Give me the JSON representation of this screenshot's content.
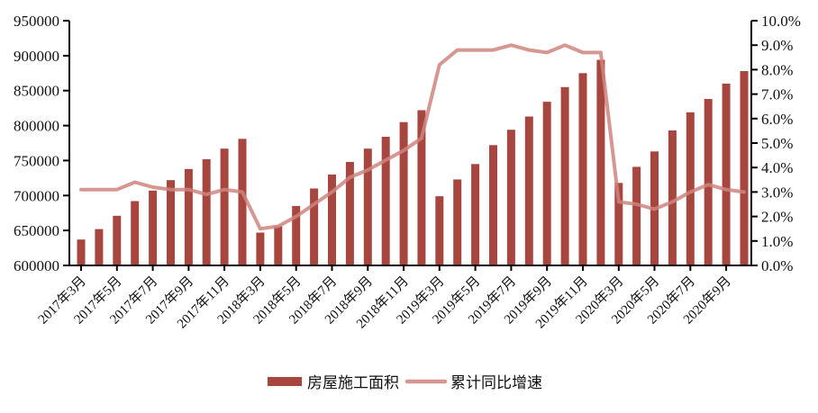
{
  "legend": {
    "bar_label": "房屋施工面积",
    "line_label": "累计同比增速"
  },
  "colors": {
    "bar": "#A7463F",
    "line": "#CF847E",
    "line_opacity": 0.85,
    "axis": "#000000",
    "text": "#111111",
    "background": "#FFFFFF"
  },
  "chart_data": {
    "type": "bar",
    "subtype": "dual-axis bar + line combo",
    "title": "",
    "grid": false,
    "legend_position": "bottom",
    "categories": [
      "2017年3月",
      "2017年4月",
      "2017年5月",
      "2017年6月",
      "2017年7月",
      "2017年8月",
      "2017年9月",
      "2017年10月",
      "2017年11月",
      "2017年12月",
      "2018年3月",
      "2018年4月",
      "2018年5月",
      "2018年6月",
      "2018年7月",
      "2018年8月",
      "2018年9月",
      "2018年10月",
      "2018年11月",
      "2018年12月",
      "2019年3月",
      "2019年4月",
      "2019年5月",
      "2019年6月",
      "2019年7月",
      "2019年8月",
      "2019年9月",
      "2019年10月",
      "2019年11月",
      "2019年12月",
      "2020年3月",
      "2020年4月",
      "2020年5月",
      "2020年6月",
      "2020年7月",
      "2020年8月",
      "2020年9月",
      "2020年10月"
    ],
    "x_tick_labels": [
      "2017年3月",
      "2017年5月",
      "2017年7月",
      "2017年9月",
      "2017年11月",
      "2018年3月",
      "2018年5月",
      "2018年7月",
      "2018年9月",
      "2018年11月",
      "2019年3月",
      "2019年5月",
      "2019年7月",
      "2019年9月",
      "2019年11月",
      "2020年3月",
      "2020年5月",
      "2020年7月",
      "2020年9月"
    ],
    "series": [
      {
        "name": "房屋施工面积",
        "type": "bar",
        "y_axis": "left",
        "values": [
          637000,
          652000,
          671000,
          692000,
          707000,
          722000,
          738000,
          752000,
          767000,
          781000,
          647000,
          656000,
          685000,
          710000,
          730000,
          748000,
          767000,
          784000,
          805000,
          822000,
          699000,
          723000,
          745000,
          772000,
          794000,
          813000,
          834000,
          855000,
          875000,
          894000,
          718000,
          741000,
          763000,
          793000,
          819000,
          838000,
          860000,
          878000
        ]
      },
      {
        "name": "累计同比增速",
        "type": "line",
        "y_axis": "right",
        "values": [
          3.1,
          3.1,
          3.1,
          3.4,
          3.2,
          3.1,
          3.1,
          2.9,
          3.1,
          3.0,
          1.5,
          1.6,
          2.0,
          2.5,
          3.0,
          3.6,
          3.9,
          4.3,
          4.7,
          5.2,
          8.2,
          8.8,
          8.8,
          8.8,
          9.0,
          8.8,
          8.7,
          9.0,
          8.7,
          8.7,
          2.6,
          2.5,
          2.3,
          2.6,
          3.0,
          3.3,
          3.1,
          3.0
        ]
      }
    ],
    "left_axis": {
      "min": 600000,
      "max": 950000,
      "step": 50000,
      "tick_labels": [
        "600000",
        "650000",
        "700000",
        "750000",
        "800000",
        "850000",
        "900000",
        "950000"
      ]
    },
    "right_axis": {
      "min": 0,
      "max": 10,
      "step": 1,
      "tick_labels": [
        "0.0%",
        "1.0%",
        "2.0%",
        "3.0%",
        "4.0%",
        "5.0%",
        "6.0%",
        "7.0%",
        "8.0%",
        "9.0%",
        "10.0%"
      ]
    }
  }
}
